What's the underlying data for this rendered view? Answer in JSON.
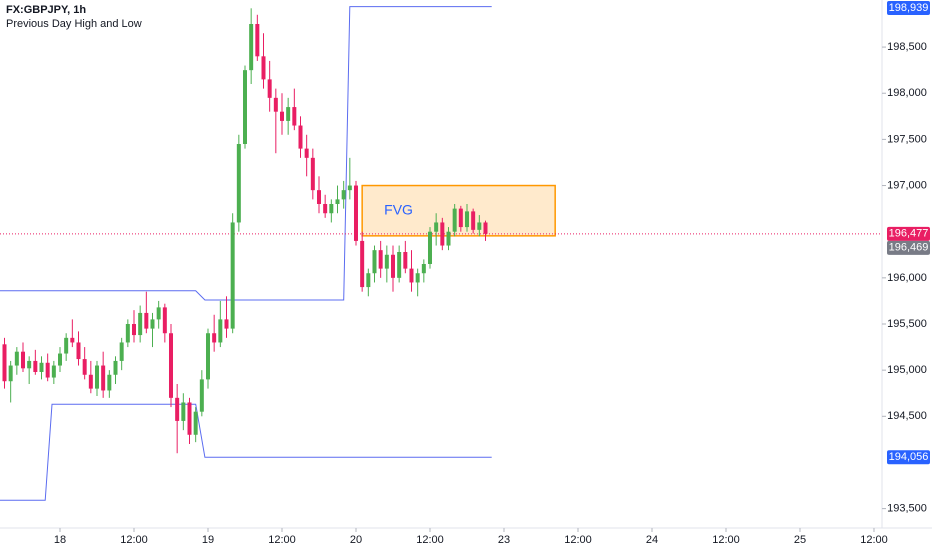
{
  "chart_data": {
    "type": "candlestick",
    "title": "FX:GBPJPY, 1h",
    "subtitle": "Previous Day High and Low",
    "xlim": [
      -9.73,
      133.3
    ],
    "ylim": [
      193.29,
      199.01
    ],
    "xticks": [
      {
        "value": 0,
        "label": "18"
      },
      {
        "value": 12,
        "label": "12:00"
      },
      {
        "value": 24,
        "label": "19"
      },
      {
        "value": 36,
        "label": "12:00"
      },
      {
        "value": 48,
        "label": "20"
      },
      {
        "value": 60,
        "label": "12:00"
      },
      {
        "value": 72,
        "label": "23"
      },
      {
        "value": 84,
        "label": "12:00"
      },
      {
        "value": 96,
        "label": "24"
      },
      {
        "value": 108,
        "label": "12:00"
      },
      {
        "value": 120,
        "label": "25"
      },
      {
        "value": 132,
        "label": "12:00"
      }
    ],
    "yticks": [
      {
        "value": 193.5,
        "label": "193,500"
      },
      {
        "value": 194.5,
        "label": "194,500"
      },
      {
        "value": 195,
        "label": "195,000"
      },
      {
        "value": 195.5,
        "label": "195,500"
      },
      {
        "value": 196,
        "label": "196,000"
      },
      {
        "value": 197,
        "label": "197,000"
      },
      {
        "value": 197.5,
        "label": "197,500"
      },
      {
        "value": 198,
        "label": "198,000"
      },
      {
        "value": 198.5,
        "label": "198,500"
      }
    ],
    "grid": false,
    "up_color": "#4caf50",
    "down_color": "#e91e63",
    "candles": {
      "x": [
        -9,
        -8,
        -7,
        -6,
        -5,
        -4,
        -3,
        -2,
        -1,
        0,
        1,
        2,
        3,
        4,
        5,
        6,
        7,
        8,
        9,
        10,
        11,
        12,
        13,
        14,
        15,
        16,
        17,
        18,
        19,
        20,
        21,
        22,
        23,
        24,
        25,
        26,
        27,
        28,
        29,
        30,
        31,
        32,
        33,
        34,
        35,
        36,
        37,
        38,
        39,
        40,
        41,
        42,
        43,
        44,
        45,
        46,
        47,
        48,
        49,
        50,
        51,
        52,
        53,
        54,
        55,
        56,
        57,
        58,
        59,
        60,
        61,
        62,
        63,
        64,
        65,
        66,
        67,
        68,
        69
      ],
      "open": [
        195.28,
        194.88,
        195.05,
        195.2,
        195.02,
        195.1,
        194.98,
        195.08,
        194.92,
        195.05,
        195.18,
        195.35,
        195.3,
        195.12,
        194.95,
        194.8,
        195.05,
        194.78,
        194.95,
        195.1,
        195.3,
        195.5,
        195.38,
        195.62,
        195.45,
        195.55,
        195.68,
        195.4,
        194.7,
        194.45,
        194.65,
        194.3,
        194.55,
        194.9,
        195.4,
        195.3,
        195.55,
        195.45,
        196.6,
        197.45,
        198.25,
        198.75,
        198.4,
        198.15,
        197.95,
        197.8,
        197.7,
        197.85,
        197.65,
        197.4,
        197.3,
        196.95,
        196.8,
        196.7,
        196.8,
        196.85,
        196.95,
        197.0,
        196.4,
        195.9,
        196.05,
        196.3,
        196.1,
        196.25,
        196.0,
        196.28,
        196.1,
        195.95,
        196.05,
        196.15,
        196.5,
        196.6,
        196.35,
        196.5,
        196.75,
        196.55,
        196.72,
        196.52,
        196.6
      ],
      "high": [
        195.35,
        195.1,
        195.25,
        195.3,
        195.15,
        195.22,
        195.15,
        195.18,
        195.1,
        195.25,
        195.4,
        195.55,
        195.42,
        195.25,
        195.1,
        195.1,
        195.2,
        195.0,
        195.15,
        195.35,
        195.55,
        195.65,
        195.7,
        195.85,
        195.62,
        195.75,
        195.72,
        195.5,
        194.85,
        194.75,
        194.7,
        194.6,
        195.0,
        195.45,
        195.6,
        195.75,
        195.8,
        196.7,
        197.55,
        198.3,
        198.92,
        198.85,
        198.65,
        198.35,
        198.05,
        198.0,
        197.95,
        198.05,
        197.75,
        197.55,
        197.4,
        197.1,
        196.9,
        196.85,
        197.0,
        197.05,
        197.3,
        197.05,
        196.5,
        196.1,
        196.35,
        196.4,
        196.35,
        196.35,
        196.35,
        196.4,
        196.3,
        196.1,
        196.2,
        196.55,
        196.7,
        196.65,
        196.55,
        196.8,
        196.78,
        196.8,
        196.75,
        196.68,
        196.62
      ],
      "low": [
        194.8,
        194.65,
        194.95,
        194.98,
        194.85,
        194.95,
        194.9,
        194.88,
        194.85,
        194.98,
        195.1,
        195.25,
        195.05,
        194.9,
        194.75,
        194.72,
        194.7,
        194.7,
        194.85,
        195.0,
        195.25,
        195.3,
        195.3,
        195.4,
        195.25,
        195.45,
        195.3,
        194.6,
        194.1,
        194.35,
        194.2,
        194.22,
        194.5,
        194.8,
        195.2,
        195.25,
        195.35,
        195.4,
        196.5,
        197.4,
        198.1,
        198.35,
        198.05,
        197.8,
        197.35,
        197.55,
        197.55,
        197.6,
        197.3,
        197.1,
        196.85,
        196.7,
        196.65,
        196.6,
        196.7,
        196.75,
        196.85,
        196.35,
        195.85,
        195.8,
        195.95,
        196.0,
        195.95,
        195.85,
        195.95,
        196.05,
        195.85,
        195.8,
        195.95,
        196.1,
        196.35,
        196.3,
        196.3,
        196.45,
        196.5,
        196.5,
        196.48,
        196.45,
        196.4
      ],
      "close": [
        194.88,
        195.05,
        195.2,
        195.02,
        195.1,
        194.98,
        195.08,
        194.92,
        195.05,
        195.18,
        195.35,
        195.3,
        195.12,
        194.95,
        194.8,
        195.05,
        194.78,
        194.95,
        195.1,
        195.3,
        195.5,
        195.38,
        195.62,
        195.45,
        195.55,
        195.68,
        195.4,
        194.7,
        194.45,
        194.65,
        194.3,
        194.55,
        194.9,
        195.4,
        195.3,
        195.55,
        195.45,
        196.6,
        197.45,
        198.25,
        198.75,
        198.4,
        198.15,
        197.95,
        197.8,
        197.7,
        197.85,
        197.65,
        197.4,
        197.3,
        196.95,
        196.8,
        196.7,
        196.8,
        196.85,
        196.95,
        197.0,
        196.4,
        195.9,
        196.05,
        196.3,
        196.1,
        196.25,
        196.0,
        196.28,
        196.1,
        195.95,
        196.05,
        196.15,
        196.5,
        196.6,
        196.35,
        196.5,
        196.75,
        196.55,
        196.72,
        196.52,
        196.6,
        196.477
      ]
    },
    "lines": [
      {
        "color": "#5b6cf0",
        "x": [
          -9.73,
          22,
          23.5,
          46,
          47,
          70
        ],
        "values": [
          195.86,
          195.86,
          195.76,
          195.76,
          198.939,
          198.939
        ]
      },
      {
        "color": "#5b6cf0",
        "x": [
          -9.73,
          -2.4,
          -1.3,
          22,
          23.5,
          70
        ],
        "values": [
          193.59,
          193.59,
          194.63,
          194.63,
          194.056,
          194.056
        ]
      }
    ],
    "box": {
      "label": "FVG",
      "x": [
        49,
        80.3
      ],
      "y": [
        196.455,
        197.0
      ],
      "color": "#ff9800",
      "label_color": "#2962ff"
    },
    "price_labels": [
      {
        "value": 198.939,
        "label": "198,939",
        "color": "#2962ff"
      },
      {
        "value": 196.477,
        "label": "196,477",
        "color": "#e91e63",
        "dotted": true
      },
      {
        "value": 196.469,
        "label": "196,469",
        "color": "#787b86"
      },
      {
        "value": 194.056,
        "label": "194,056",
        "color": "#2962ff"
      }
    ]
  }
}
